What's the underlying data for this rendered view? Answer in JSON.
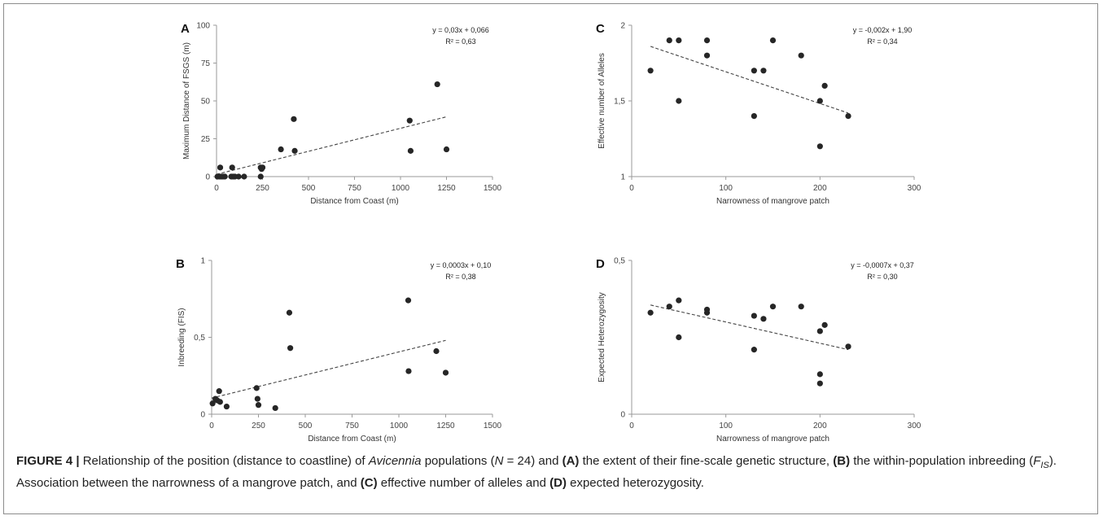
{
  "caption": {
    "figure_label": "FIGURE 4 |",
    "segments": [
      {
        "t": " Relationship of the position (distance to coastline) of ",
        "s": "n"
      },
      {
        "t": "Avicennia",
        "s": "i"
      },
      {
        "t": " populations (",
        "s": "n"
      },
      {
        "t": "N",
        "s": "i"
      },
      {
        "t": " = 24) and ",
        "s": "n"
      },
      {
        "t": "(A)",
        "s": "b"
      },
      {
        "t": " the extent of their fine-scale genetic structure, ",
        "s": "n"
      },
      {
        "t": "(B)",
        "s": "b"
      },
      {
        "t": " the within-population inbreeding (",
        "s": "n"
      },
      {
        "t": "F",
        "s": "i"
      },
      {
        "t": "IS",
        "s": "isub"
      },
      {
        "t": "). Association between the narrowness of a mangrove patch, and ",
        "s": "n"
      },
      {
        "t": "(C)",
        "s": "b"
      },
      {
        "t": " effective number of alleles and ",
        "s": "n"
      },
      {
        "t": "(D)",
        "s": "b"
      },
      {
        "t": " expected heterozygosity.",
        "s": "n"
      }
    ]
  },
  "chart_data": [
    {
      "panel": "A",
      "type": "scatter",
      "xlabel": "Distance from Coast (m)",
      "ylabel": "Maximum Distance  of FSGS (m)",
      "xlim": [
        0,
        1500
      ],
      "ylim": [
        0,
        100
      ],
      "xticks": [
        0,
        250,
        500,
        750,
        1000,
        1250,
        1500
      ],
      "xtick_labels": [
        "0",
        "250",
        "500",
        "750",
        "1000",
        "1250",
        "1500"
      ],
      "yticks": [
        0,
        25,
        50,
        75,
        100
      ],
      "ytick_labels": [
        "0",
        "25",
        "50",
        "75",
        "100"
      ],
      "equation": "y = 0,03x + 0,066",
      "r2": "R² = 0,63",
      "trendline": {
        "x": [
          0,
          1250
        ],
        "y": [
          1.5,
          39.5
        ]
      },
      "points": [
        [
          5,
          0
        ],
        [
          15,
          0
        ],
        [
          20,
          6
        ],
        [
          25,
          0
        ],
        [
          35,
          0
        ],
        [
          45,
          0
        ],
        [
          80,
          0
        ],
        [
          85,
          6
        ],
        [
          90,
          0
        ],
        [
          100,
          0
        ],
        [
          120,
          0
        ],
        [
          150,
          0
        ],
        [
          240,
          0
        ],
        [
          240,
          6
        ],
        [
          245,
          5
        ],
        [
          250,
          6
        ],
        [
          350,
          18
        ],
        [
          420,
          38
        ],
        [
          425,
          17
        ],
        [
          1050,
          37
        ],
        [
          1055,
          17
        ],
        [
          1200,
          61
        ],
        [
          1250,
          18
        ]
      ]
    },
    {
      "panel": "B",
      "type": "scatter",
      "xlabel": "Distance from Coast (m)",
      "ylabel": "Inbreeding (FIS)",
      "xlim": [
        0,
        1500
      ],
      "ylim": [
        0,
        1
      ],
      "xticks": [
        0,
        250,
        500,
        750,
        1000,
        1250,
        1500
      ],
      "xtick_labels": [
        "0",
        "250",
        "500",
        "750",
        "1000",
        "1250",
        "1500"
      ],
      "yticks": [
        0,
        0.5,
        1
      ],
      "ytick_labels": [
        "0",
        "0,5",
        "1"
      ],
      "equation": "y = 0,0003x + 0,10",
      "r2": "R² = 0,38",
      "trendline": {
        "x": [
          0,
          1250
        ],
        "y": [
          0.105,
          0.48
        ]
      },
      "points": [
        [
          5,
          0.07
        ],
        [
          20,
          0.1
        ],
        [
          30,
          0.09
        ],
        [
          40,
          0.15
        ],
        [
          45,
          0.08
        ],
        [
          80,
          0.05
        ],
        [
          240,
          0.17
        ],
        [
          245,
          0.1
        ],
        [
          250,
          0.06
        ],
        [
          340,
          0.04
        ],
        [
          415,
          0.66
        ],
        [
          420,
          0.43
        ],
        [
          1050,
          0.74
        ],
        [
          1052,
          0.28
        ],
        [
          1200,
          0.41
        ],
        [
          1250,
          0.27
        ]
      ]
    },
    {
      "panel": "C",
      "type": "scatter",
      "xlabel": "Narrowness of mangrove patch",
      "ylabel": "Effective number of Alleles",
      "xlim": [
        0,
        300
      ],
      "ylim": [
        1,
        2
      ],
      "xticks": [
        0,
        100,
        200,
        300
      ],
      "xtick_labels": [
        "0",
        "100",
        "200",
        "300"
      ],
      "yticks": [
        1,
        1.5,
        2
      ],
      "ytick_labels": [
        "1",
        "1,5",
        "2"
      ],
      "equation": "y = -0,002x + 1,90",
      "r2": "R² = 0,34",
      "trendline": {
        "x": [
          20,
          230
        ],
        "y": [
          1.86,
          1.42
        ]
      },
      "points": [
        [
          20,
          1.7
        ],
        [
          40,
          1.9
        ],
        [
          50,
          1.9
        ],
        [
          50,
          1.5
        ],
        [
          80,
          1.9
        ],
        [
          80,
          1.8
        ],
        [
          130,
          1.7
        ],
        [
          130,
          1.4
        ],
        [
          140,
          1.7
        ],
        [
          150,
          1.9
        ],
        [
          180,
          1.8
        ],
        [
          200,
          1.5
        ],
        [
          200,
          1.2
        ],
        [
          205,
          1.6
        ],
        [
          230,
          1.4
        ]
      ]
    },
    {
      "panel": "D",
      "type": "scatter",
      "xlabel": "Narrowness of mangrove patch",
      "ylabel": "Expected Heterozygosity",
      "xlim": [
        0,
        300
      ],
      "ylim": [
        0,
        0.5
      ],
      "xticks": [
        0,
        100,
        200,
        300
      ],
      "xtick_labels": [
        "0",
        "100",
        "200",
        "300"
      ],
      "yticks": [
        0,
        0.5
      ],
      "ytick_labels": [
        "0",
        "0,5"
      ],
      "equation": "y = -0,0007x + 0,37",
      "r2": "R² = 0,30",
      "trendline": {
        "x": [
          20,
          230
        ],
        "y": [
          0.355,
          0.21
        ]
      },
      "points": [
        [
          20,
          0.33
        ],
        [
          40,
          0.35
        ],
        [
          50,
          0.37
        ],
        [
          50,
          0.25
        ],
        [
          80,
          0.34
        ],
        [
          80,
          0.33
        ],
        [
          130,
          0.32
        ],
        [
          130,
          0.21
        ],
        [
          140,
          0.31
        ],
        [
          150,
          0.35
        ],
        [
          180,
          0.35
        ],
        [
          200,
          0.27
        ],
        [
          200,
          0.13
        ],
        [
          200,
          0.1
        ],
        [
          205,
          0.29
        ],
        [
          230,
          0.22
        ]
      ]
    }
  ]
}
